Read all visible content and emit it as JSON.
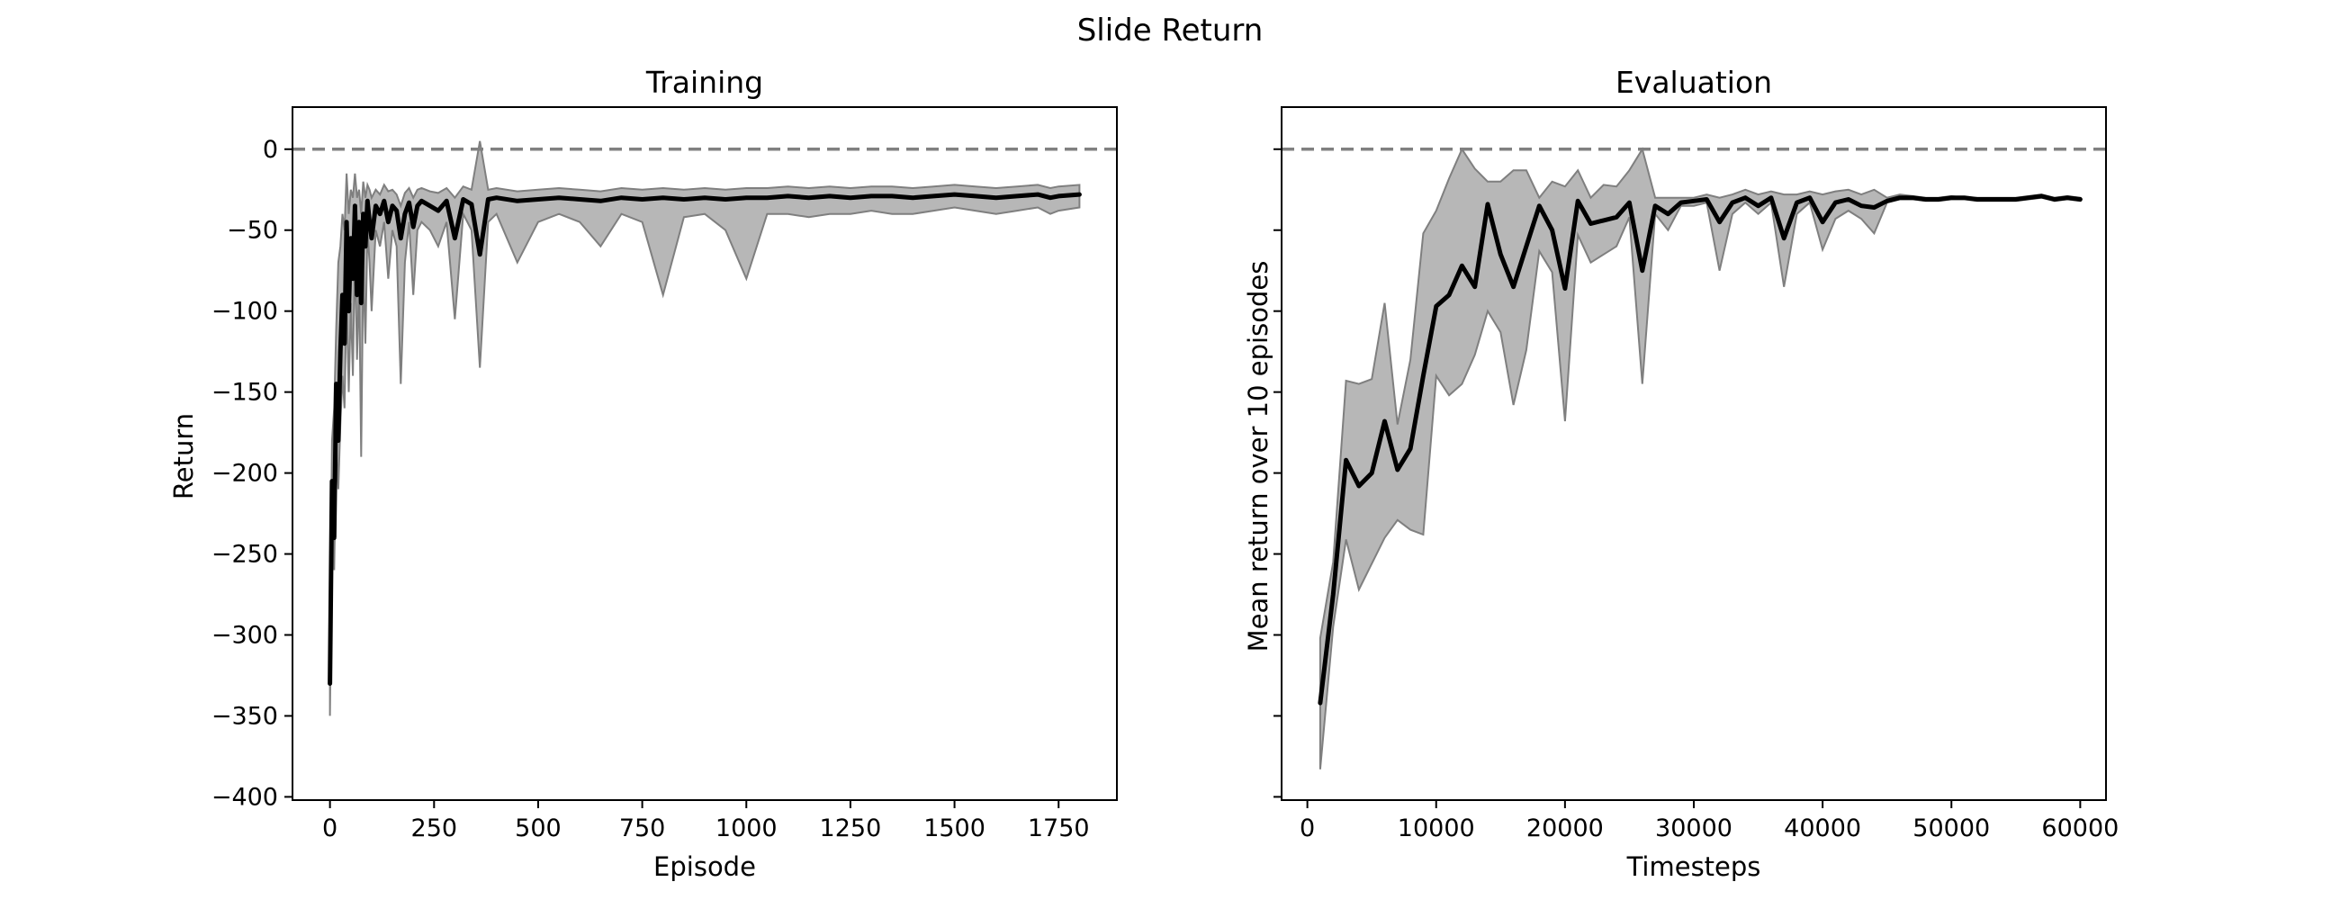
{
  "figure": {
    "title": "Slide Return"
  },
  "colors": {
    "line": "#000000",
    "band": "#b3b3b3",
    "band_edge": "#7f7f7f",
    "reference": "#808080"
  },
  "chart_data": [
    {
      "type": "line",
      "title": "Training",
      "xlabel": "Episode",
      "ylabel": "Return",
      "xlim": [
        -90,
        1890
      ],
      "ylim": [
        -402,
        26
      ],
      "xticks": [
        0,
        250,
        500,
        750,
        1000,
        1250,
        1500,
        1750
      ],
      "yticks": [
        0,
        -50,
        -100,
        -150,
        -200,
        -250,
        -300,
        -350,
        -400
      ],
      "grid": false,
      "reference_line": {
        "y": 0,
        "style": "dashed"
      },
      "series": [
        {
          "x": [
            0,
            5,
            10,
            15,
            20,
            25,
            30,
            35,
            40,
            45,
            50,
            55,
            60,
            65,
            70,
            75,
            80,
            85,
            90,
            95,
            100,
            110,
            120,
            130,
            140,
            150,
            160,
            170,
            180,
            190,
            200,
            210,
            220,
            240,
            260,
            280,
            300,
            320,
            340,
            360,
            380,
            400,
            450,
            500,
            550,
            600,
            650,
            700,
            750,
            800,
            850,
            900,
            950,
            1000,
            1050,
            1100,
            1150,
            1200,
            1250,
            1300,
            1350,
            1400,
            1450,
            1500,
            1550,
            1600,
            1650,
            1700,
            1730,
            1750,
            1800
          ],
          "y": [
            -330,
            -205,
            -240,
            -145,
            -180,
            -125,
            -90,
            -120,
            -45,
            -100,
            -55,
            -80,
            -35,
            -90,
            -45,
            -95,
            -40,
            -60,
            -32,
            -45,
            -55,
            -35,
            -40,
            -32,
            -45,
            -35,
            -38,
            -55,
            -40,
            -33,
            -48,
            -35,
            -32,
            -35,
            -38,
            -32,
            -55,
            -31,
            -34,
            -65,
            -31,
            -30,
            -32,
            -31,
            -30,
            -31,
            -32,
            -30,
            -31,
            -30,
            -31,
            -30,
            -31,
            -30,
            -30,
            -29,
            -30,
            -29,
            -30,
            -29,
            -29,
            -30,
            -29,
            -28,
            -29,
            -30,
            -29,
            -28,
            -30,
            -29,
            -28
          ],
          "band_upper": [
            -310,
            -180,
            -160,
            -110,
            -70,
            -60,
            -40,
            -50,
            -15,
            -40,
            -25,
            -30,
            -15,
            -30,
            -25,
            -40,
            -20,
            -30,
            -22,
            -25,
            -30,
            -25,
            -28,
            -22,
            -26,
            -25,
            -28,
            -35,
            -27,
            -24,
            -30,
            -25,
            -24,
            -26,
            -27,
            -24,
            -30,
            -23,
            -25,
            5,
            -25,
            -24,
            -26,
            -25,
            -24,
            -25,
            -26,
            -24,
            -25,
            -24,
            -25,
            -24,
            -25,
            -24,
            -24,
            -23,
            -24,
            -23,
            -24,
            -23,
            -23,
            -24,
            -23,
            -22,
            -23,
            -24,
            -23,
            -22,
            -24,
            -23,
            -22
          ],
          "band_lower": [
            -350,
            -230,
            -260,
            -180,
            -210,
            -170,
            -140,
            -160,
            -90,
            -150,
            -95,
            -140,
            -60,
            -130,
            -80,
            -190,
            -70,
            -120,
            -50,
            -70,
            -100,
            -50,
            -60,
            -45,
            -80,
            -50,
            -60,
            -145,
            -70,
            -45,
            -90,
            -50,
            -45,
            -50,
            -60,
            -45,
            -105,
            -40,
            -50,
            -135,
            -45,
            -40,
            -70,
            -45,
            -40,
            -45,
            -60,
            -40,
            -45,
            -90,
            -42,
            -40,
            -50,
            -80,
            -40,
            -40,
            -42,
            -40,
            -40,
            -38,
            -40,
            -40,
            -38,
            -36,
            -38,
            -40,
            -38,
            -36,
            -40,
            -38,
            -36
          ]
        }
      ]
    },
    {
      "type": "line",
      "title": "Evaluation",
      "xlabel": "Timesteps",
      "ylabel": "Mean return over 10 episodes",
      "xlim": [
        -2000,
        62000
      ],
      "ylim": [
        -402,
        26
      ],
      "xticks": [
        0,
        10000,
        20000,
        30000,
        40000,
        50000,
        60000
      ],
      "yticks": [
        0,
        -50,
        -100,
        -150,
        -200,
        -250,
        -300,
        -350,
        -400
      ],
      "ytick_labels_visible": false,
      "grid": false,
      "reference_line": {
        "y": 0,
        "style": "dashed"
      },
      "series": [
        {
          "x": [
            1000,
            2000,
            3000,
            4000,
            5000,
            6000,
            7000,
            8000,
            9000,
            10000,
            11000,
            12000,
            13000,
            14000,
            15000,
            16000,
            17000,
            18000,
            19000,
            20000,
            21000,
            22000,
            23000,
            24000,
            25000,
            26000,
            27000,
            28000,
            29000,
            30000,
            31000,
            32000,
            33000,
            34000,
            35000,
            36000,
            37000,
            38000,
            39000,
            40000,
            41000,
            42000,
            43000,
            44000,
            45000,
            46000,
            47000,
            48000,
            49000,
            50000,
            51000,
            52000,
            53000,
            54000,
            55000,
            56000,
            57000,
            58000,
            59000,
            60000
          ],
          "y": [
            -342,
            -275,
            -192,
            -208,
            -200,
            -168,
            -198,
            -185,
            -140,
            -97,
            -90,
            -72,
            -85,
            -34,
            -65,
            -85,
            -60,
            -35,
            -50,
            -86,
            -32,
            -46,
            -44,
            -42,
            -33,
            -75,
            -35,
            -40,
            -33,
            -32,
            -31,
            -45,
            -33,
            -30,
            -35,
            -30,
            -55,
            -33,
            -30,
            -45,
            -33,
            -31,
            -35,
            -36,
            -32,
            -30,
            -30,
            -31,
            -31,
            -30,
            -30,
            -31,
            -31,
            -31,
            -31,
            -30,
            -29,
            -31,
            -30,
            -31
          ],
          "band_upper": [
            -302,
            -255,
            -143,
            -145,
            -142,
            -95,
            -170,
            -130,
            -52,
            -38,
            -18,
            0,
            -12,
            -20,
            -20,
            -13,
            -13,
            -30,
            -20,
            -23,
            -13,
            -30,
            -22,
            -23,
            -13,
            0,
            -30,
            -30,
            -30,
            -30,
            -28,
            -30,
            -28,
            -25,
            -28,
            -26,
            -28,
            -28,
            -26,
            -28,
            -26,
            -25,
            -28,
            -25,
            -30,
            -28,
            -29,
            -30,
            -30,
            -29,
            -30,
            -30,
            -30,
            -30,
            -30,
            -29,
            -28,
            -30,
            -29,
            -30
          ],
          "band_lower": [
            -383,
            -295,
            -241,
            -272,
            -256,
            -240,
            -229,
            -235,
            -238,
            -140,
            -152,
            -145,
            -127,
            -100,
            -113,
            -158,
            -124,
            -63,
            -76,
            -168,
            -53,
            -70,
            -65,
            -60,
            -42,
            -145,
            -40,
            -50,
            -35,
            -35,
            -33,
            -75,
            -40,
            -33,
            -40,
            -33,
            -85,
            -40,
            -33,
            -62,
            -43,
            -38,
            -43,
            -52,
            -33,
            -31,
            -31,
            -32,
            -32,
            -31,
            -31,
            -32,
            -32,
            -32,
            -32,
            -31,
            -30,
            -32,
            -31,
            -32
          ]
        }
      ]
    }
  ]
}
